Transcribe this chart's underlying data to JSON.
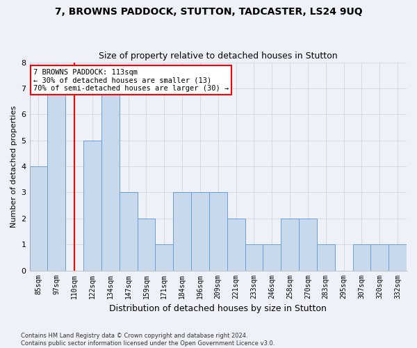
{
  "title": "7, BROWNS PADDOCK, STUTTON, TADCASTER, LS24 9UQ",
  "subtitle": "Size of property relative to detached houses in Stutton",
  "xlabel": "Distribution of detached houses by size in Stutton",
  "ylabel": "Number of detached properties",
  "categories": [
    "85sqm",
    "97sqm",
    "110sqm",
    "122sqm",
    "134sqm",
    "147sqm",
    "159sqm",
    "171sqm",
    "184sqm",
    "196sqm",
    "209sqm",
    "221sqm",
    "233sqm",
    "246sqm",
    "258sqm",
    "270sqm",
    "283sqm",
    "295sqm",
    "307sqm",
    "320sqm",
    "332sqm"
  ],
  "values": [
    4,
    7,
    0,
    5,
    7,
    3,
    2,
    1,
    3,
    3,
    3,
    2,
    1,
    1,
    2,
    2,
    1,
    0,
    1,
    1,
    1
  ],
  "bar_color": "#c8d9ee",
  "bar_edge_color": "#6a9fd8",
  "annotation_line1": "7 BROWNS PADDOCK: 113sqm",
  "annotation_line2": "← 30% of detached houses are smaller (13)",
  "annotation_line3": "70% of semi-detached houses are larger (30) →",
  "annotation_box_color": "white",
  "annotation_box_edge": "red",
  "vline_color": "red",
  "vline_x": 2.0,
  "ylim": [
    0,
    8
  ],
  "yticks": [
    0,
    1,
    2,
    3,
    4,
    5,
    6,
    7,
    8
  ],
  "grid_color": "#c8d0dc",
  "footer": "Contains HM Land Registry data © Crown copyright and database right 2024.\nContains public sector information licensed under the Open Government Licence v3.0.",
  "bg_color": "#eef2f8",
  "title_fontsize": 10,
  "subtitle_fontsize": 9,
  "ylabel_fontsize": 8,
  "xlabel_fontsize": 9,
  "tick_fontsize": 7,
  "footer_fontsize": 6
}
